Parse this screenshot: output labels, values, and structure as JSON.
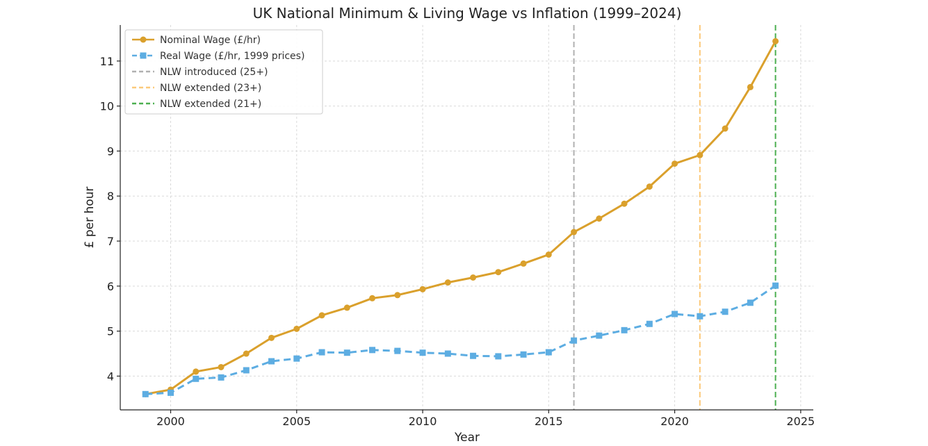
{
  "chart_data": {
    "type": "line",
    "title": "UK National Minimum & Living Wage vs Inflation (1999–2024)",
    "xlabel": "Year",
    "ylabel": "£ per hour",
    "xlim": [
      1998,
      2025.5
    ],
    "ylim": [
      3.25,
      11.8
    ],
    "x_ticks": [
      2000,
      2005,
      2010,
      2015,
      2020,
      2025
    ],
    "y_ticks": [
      4,
      5,
      6,
      7,
      8,
      9,
      10,
      11
    ],
    "grid": true,
    "legend_position": "top-left",
    "x": [
      1999,
      2000,
      2001,
      2002,
      2003,
      2004,
      2005,
      2006,
      2007,
      2008,
      2009,
      2010,
      2011,
      2012,
      2013,
      2014,
      2015,
      2016,
      2017,
      2018,
      2019,
      2020,
      2021,
      2022,
      2023,
      2024
    ],
    "series": [
      {
        "name": "Nominal Wage (£/hr)",
        "color": "#DAA02C",
        "marker": "circle",
        "style": "solid",
        "values": [
          3.6,
          3.7,
          4.1,
          4.2,
          4.5,
          4.85,
          5.05,
          5.35,
          5.52,
          5.73,
          5.8,
          5.93,
          6.08,
          6.19,
          6.31,
          6.5,
          6.7,
          7.2,
          7.5,
          7.83,
          8.21,
          8.72,
          8.91,
          9.5,
          10.42,
          11.44
        ]
      },
      {
        "name": "Real Wage (£/hr, 1999 prices)",
        "color": "#5DADE2",
        "marker": "square",
        "style": "dashed",
        "values": [
          3.6,
          3.63,
          3.94,
          3.97,
          4.13,
          4.33,
          4.39,
          4.53,
          4.52,
          4.58,
          4.56,
          4.52,
          4.5,
          4.45,
          4.44,
          4.48,
          4.53,
          4.79,
          4.9,
          5.02,
          5.16,
          5.38,
          5.33,
          5.43,
          5.63,
          6.01
        ]
      }
    ],
    "vertical_lines": [
      {
        "name": "NLW introduced (25+)",
        "x": 2016,
        "color": "#B0B0B0"
      },
      {
        "name": "NLW extended (23+)",
        "x": 2021,
        "color": "#FBC97A"
      },
      {
        "name": "NLW extended (21+)",
        "x": 2024,
        "color": "#4CAF50"
      }
    ]
  }
}
